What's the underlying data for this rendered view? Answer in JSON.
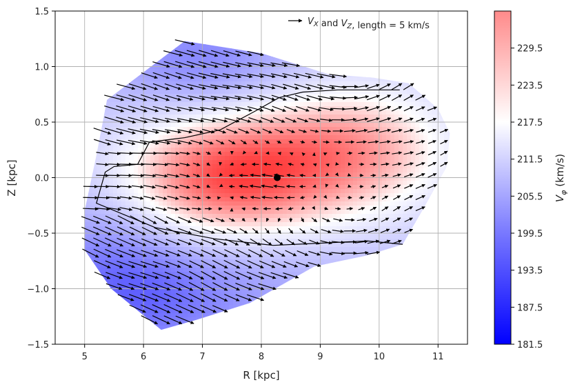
{
  "chart_data": {
    "type": "heatmap",
    "title": "",
    "xlabel": "R [kpc]",
    "ylabel": "Z [kpc]",
    "xlim": [
      4.5,
      11.5
    ],
    "ylim": [
      -1.5,
      1.5
    ],
    "x_ticks": [
      "5",
      "6",
      "7",
      "8",
      "9",
      "10",
      "11"
    ],
    "y_ticks": [
      "−1.5",
      "−1.0",
      "−0.5",
      "0.0",
      "0.5",
      "1.0",
      "1.5"
    ],
    "grid": true,
    "quiver_legend": {
      "text": "V_X and V_Z, length = 5 km/s",
      "position": "top-right"
    },
    "sun_marker": {
      "R": 8.27,
      "Z": 0.0
    },
    "colorbar": {
      "label": "V_φ (km/s)",
      "range": [
        181.5,
        235.5
      ],
      "ticks": [
        "181.5",
        "187.5",
        "193.5",
        "199.5",
        "205.5",
        "211.5",
        "217.5",
        "223.5",
        "229.5"
      ],
      "colormap": "bwr",
      "colors": {
        "low": "#0000ff",
        "mid": "#ffffff",
        "high": "#ff0000"
      }
    },
    "coverage_polygon": [
      [
        5.38,
        0.7
      ],
      [
        6.7,
        1.23
      ],
      [
        8.0,
        1.12
      ],
      [
        9.15,
        0.93
      ],
      [
        9.9,
        0.9
      ],
      [
        10.5,
        0.85
      ],
      [
        11.0,
        0.62
      ],
      [
        11.2,
        0.4
      ],
      [
        11.15,
        0.1
      ],
      [
        10.75,
        -0.28
      ],
      [
        10.4,
        -0.6
      ],
      [
        9.8,
        -0.7
      ],
      [
        8.9,
        -0.8
      ],
      [
        7.8,
        -1.13
      ],
      [
        6.9,
        -1.28
      ],
      [
        6.3,
        -1.37
      ],
      [
        5.45,
        -1.0
      ],
      [
        5.0,
        -0.65
      ],
      [
        5.0,
        -0.3
      ],
      [
        5.2,
        0.2
      ]
    ],
    "contour_line": [
      [
        10.35,
        0.79
      ],
      [
        9.3,
        0.79
      ],
      [
        8.7,
        0.77
      ],
      [
        8.3,
        0.72
      ],
      [
        7.9,
        0.6
      ],
      [
        7.3,
        0.43
      ],
      [
        6.7,
        0.36
      ],
      [
        6.1,
        0.32
      ],
      [
        5.9,
        0.12
      ],
      [
        5.5,
        0.1
      ],
      [
        5.35,
        0.05
      ],
      [
        5.2,
        -0.23
      ],
      [
        6.2,
        -0.45
      ],
      [
        7.2,
        -0.55
      ],
      [
        8.2,
        -0.61
      ],
      [
        9.0,
        -0.59
      ],
      [
        9.8,
        -0.57
      ],
      [
        10.4,
        -0.6
      ]
    ],
    "vphi_field": {
      "description": "V_phi (km/s) over R,Z",
      "background": 208,
      "blobs": [
        {
          "R": 7.3,
          "Z": 0.0,
          "sR": 1.3,
          "sZ": 0.42,
          "amp": 20
        },
        {
          "R": 9.6,
          "Z": 0.25,
          "sR": 1.3,
          "sZ": 0.45,
          "amp": 15
        },
        {
          "R": 7.0,
          "Z": 1.05,
          "sR": 1.0,
          "sZ": 0.3,
          "amp": -8
        },
        {
          "R": 6.2,
          "Z": -1.05,
          "sR": 1.0,
          "sZ": 0.35,
          "amp": -10
        },
        {
          "R": 5.3,
          "Z": -0.75,
          "sR": 0.8,
          "sZ": 0.45,
          "amp": -6
        },
        {
          "R": 8.2,
          "Z": -0.95,
          "sR": 1.1,
          "sZ": 0.3,
          "amp": -3
        }
      ]
    },
    "velocity_field": {
      "description": "V_X, V_Z (km/s)",
      "arrow_reference_kms": 5,
      "grid_R": [
        5.1,
        5.3,
        5.5,
        5.7,
        5.9,
        6.1,
        6.3,
        6.5,
        6.7,
        6.9,
        7.1,
        7.3,
        7.5,
        7.7,
        7.9,
        8.1,
        8.3,
        8.5,
        8.7,
        8.9,
        9.1,
        9.3,
        9.5,
        9.7,
        9.9,
        10.1,
        10.3,
        10.5,
        10.7,
        10.9,
        11.1
      ],
      "grid_Z": [
        -1.28,
        -1.18,
        -1.08,
        -0.98,
        -0.88,
        -0.78,
        -0.68,
        -0.58,
        -0.48,
        -0.38,
        -0.28,
        -0.18,
        -0.08,
        0.02,
        0.12,
        0.22,
        0.32,
        0.42,
        0.52,
        0.62,
        0.72,
        0.82,
        0.92,
        1.02,
        1.12,
        1.22
      ],
      "model": [
        {
          "zone": "upper-left",
          "Vx": 6.5,
          "Vz": -1.6
        },
        {
          "zone": "mid-left",
          "Vx": 5.0,
          "Vz": -0.6
        },
        {
          "zone": "lower-left",
          "Vx": 6.0,
          "Vz": -2.5
        },
        {
          "zone": "centre",
          "Vx": -4.2,
          "Vz": 0.1
        },
        {
          "zone": "right",
          "Vx": 4.5,
          "Vz": 2.2
        }
      ]
    }
  }
}
